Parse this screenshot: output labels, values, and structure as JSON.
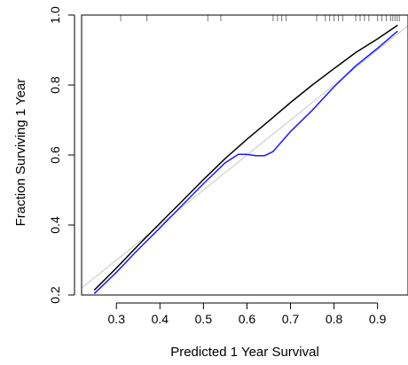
{
  "chart_data": {
    "type": "line",
    "xlabel": "Predicted 1 Year Survival",
    "ylabel": "Fraction Surviving 1 Year",
    "xlim": [
      0.22,
      0.97
    ],
    "ylim": [
      0.2,
      1.0
    ],
    "x_ticks": [
      "0.3",
      "0.4",
      "0.5",
      "0.6",
      "0.7",
      "0.8",
      "0.9"
    ],
    "y_ticks": [
      "0.2",
      "0.4",
      "0.6",
      "0.8",
      "1.0"
    ],
    "grid": false,
    "legend": "none",
    "reference_line": {
      "from": [
        0.2,
        0.2
      ],
      "to": [
        1.0,
        1.0
      ],
      "color": "#c8c8c8"
    },
    "rug_color": "#777777",
    "rug_x": [
      0.31,
      0.37,
      0.51,
      0.54,
      0.66,
      0.67,
      0.68,
      0.69,
      0.76,
      0.78,
      0.79,
      0.8,
      0.81,
      0.82,
      0.85,
      0.86,
      0.87,
      0.88,
      0.9,
      0.91,
      0.92,
      0.93,
      0.935,
      0.94,
      0.945,
      0.95
    ],
    "series": [
      {
        "color": "#000000",
        "x": [
          0.25,
          0.3,
          0.35,
          0.4,
          0.45,
          0.5,
          0.55,
          0.6,
          0.65,
          0.7,
          0.75,
          0.8,
          0.85,
          0.9,
          0.945
        ],
        "y": [
          0.215,
          0.277,
          0.342,
          0.405,
          0.467,
          0.53,
          0.59,
          0.645,
          0.697,
          0.75,
          0.8,
          0.847,
          0.893,
          0.932,
          0.97
        ]
      },
      {
        "color": "#1a1aff",
        "x": [
          0.25,
          0.3,
          0.35,
          0.4,
          0.45,
          0.5,
          0.55,
          0.58,
          0.6,
          0.62,
          0.64,
          0.66,
          0.7,
          0.75,
          0.8,
          0.85,
          0.9,
          0.945
        ],
        "y": [
          0.205,
          0.265,
          0.33,
          0.392,
          0.455,
          0.518,
          0.578,
          0.602,
          0.602,
          0.598,
          0.598,
          0.61,
          0.667,
          0.728,
          0.795,
          0.855,
          0.905,
          0.953
        ]
      }
    ]
  }
}
